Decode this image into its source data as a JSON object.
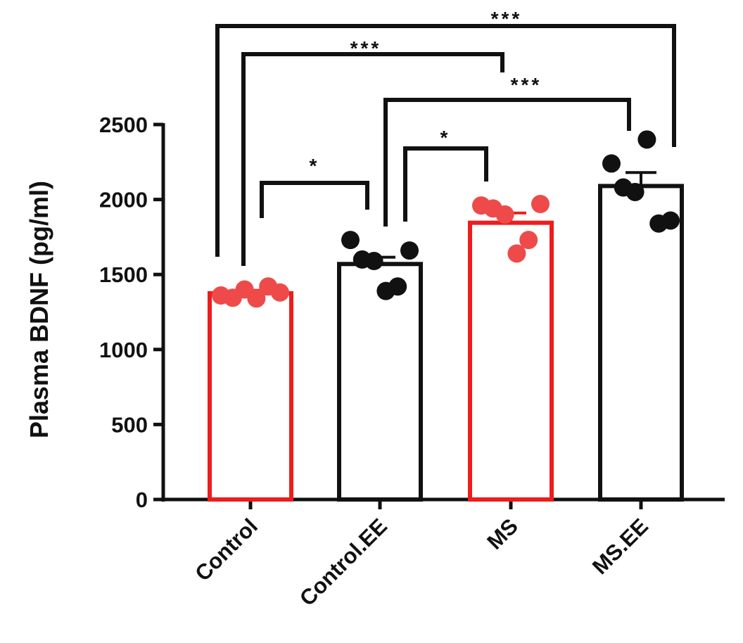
{
  "chart_data": {
    "type": "bar",
    "title": "",
    "xlabel": "",
    "ylabel": "Plasma BDNF (pg/ml)",
    "ylim": [
      0,
      2500
    ],
    "yticks": [
      0,
      500,
      1000,
      1500,
      2000,
      2500
    ],
    "categories": [
      "Control",
      "Control.EE",
      "MS",
      "MS.EE"
    ],
    "values": [
      1375,
      1570,
      1845,
      2090
    ],
    "sem": [
      20,
      45,
      65,
      90
    ],
    "bar_colors": [
      "#ee1c1c",
      "#111111",
      "#ee1c1c",
      "#111111"
    ],
    "point_colors": [
      "#ef4a4a",
      "#111111",
      "#ef4a4a",
      "#111111"
    ],
    "points": [
      [
        1360,
        1345,
        1400,
        1340,
        1420,
        1380
      ],
      [
        1730,
        1600,
        1590,
        1390,
        1420,
        1660
      ],
      [
        1960,
        1940,
        1900,
        1640,
        1730,
        1970
      ],
      [
        2240,
        2080,
        2050,
        2400,
        1840,
        1860
      ]
    ],
    "significance": [
      {
        "groups": [
          "Control",
          "Control.EE"
        ],
        "label": "*"
      },
      {
        "groups": [
          "Control.EE",
          "MS"
        ],
        "label": "*"
      },
      {
        "groups": [
          "Control",
          "MS"
        ],
        "label": "***"
      },
      {
        "groups": [
          "Control.EE",
          "MS.EE"
        ],
        "label": "***"
      },
      {
        "groups": [
          "Control",
          "MS.EE"
        ],
        "label": "***"
      }
    ],
    "grid": false,
    "legend": "none"
  }
}
